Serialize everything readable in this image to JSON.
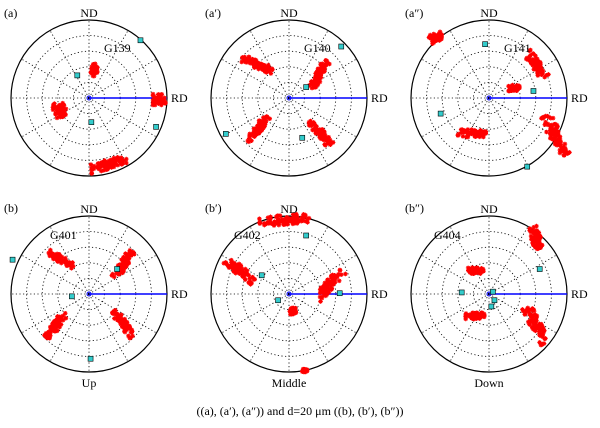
{
  "caption": "((a), (a′), (a″)) and d=20 μm ((b), (b′), (b″))",
  "colors": {
    "points": "#ff0000",
    "markers": "#33cccc",
    "rd_line": "#0000ff",
    "grid": "#000000"
  },
  "axis_labels": {
    "top": "ND",
    "right": "RD"
  },
  "chart_data": [
    {
      "type": "scatter",
      "subtype": "pole-figure",
      "panel": "(a)",
      "grain": "G139",
      "bottom_label": "",
      "projection_range": [
        -1,
        1
      ],
      "grid": true,
      "clusters": [
        {
          "x": 0.07,
          "y": 0.36,
          "spread": [
            0.04,
            0.08
          ],
          "angle": -10
        },
        {
          "x": -0.38,
          "y": -0.15,
          "spread": [
            0.08,
            0.1
          ],
          "angle": 30
        },
        {
          "x": 0.9,
          "y": -0.02,
          "spread": [
            0.08,
            0.07
          ],
          "angle": 0
        },
        {
          "x": 0.25,
          "y": -0.85,
          "spread": [
            0.24,
            0.06
          ],
          "angle": 15
        }
      ],
      "markers": [
        [
          0.66,
          0.74
        ],
        [
          -0.15,
          0.29
        ],
        [
          0.03,
          -0.31
        ],
        [
          0.86,
          -0.37
        ]
      ]
    },
    {
      "type": "scatter",
      "subtype": "pole-figure",
      "panel": "(a′)",
      "grain": "G140",
      "bottom_label": "",
      "projection_range": [
        -1,
        1
      ],
      "grid": true,
      "clusters": [
        {
          "x": -0.41,
          "y": 0.43,
          "spread": [
            0.21,
            0.05
          ],
          "angle": -22
        },
        {
          "x": 0.39,
          "y": 0.3,
          "spread": [
            0.2,
            0.05
          ],
          "angle": 62
        },
        {
          "x": -0.4,
          "y": -0.4,
          "spread": [
            0.2,
            0.05
          ],
          "angle": 55
        },
        {
          "x": 0.4,
          "y": -0.45,
          "spread": [
            0.2,
            0.05
          ],
          "angle": -50
        }
      ],
      "markers": [
        [
          0.22,
          0.14
        ],
        [
          0.67,
          0.66
        ],
        [
          -0.81,
          -0.46
        ],
        [
          0.17,
          -0.51
        ]
      ]
    },
    {
      "type": "scatter",
      "subtype": "pole-figure",
      "panel": "(a″)",
      "grain": "G141",
      "bottom_label": "",
      "projection_range": [
        -1,
        1
      ],
      "grid": true,
      "clusters": [
        {
          "x": -0.68,
          "y": 0.78,
          "spread": [
            0.08,
            0.06
          ],
          "angle": 30
        },
        {
          "x": 0.32,
          "y": 0.13,
          "spread": [
            0.07,
            0.04
          ],
          "angle": 0
        },
        {
          "x": 0.6,
          "y": 0.43,
          "spread": [
            0.2,
            0.06
          ],
          "angle": -55
        },
        {
          "x": 0.85,
          "y": -0.48,
          "spread": [
            0.28,
            0.08
          ],
          "angle": -62
        },
        {
          "x": -0.22,
          "y": -0.45,
          "spread": [
            0.18,
            0.05
          ],
          "angle": 0
        }
      ],
      "markers": [
        [
          -0.62,
          -0.2
        ],
        [
          0.57,
          0.09
        ],
        [
          0.49,
          -0.88
        ],
        [
          -0.05,
          0.69
        ]
      ]
    },
    {
      "type": "scatter",
      "subtype": "pole-figure",
      "panel": "(b)",
      "grain": "G401",
      "bottom_label": "Up",
      "projection_range": [
        -1,
        1
      ],
      "grid": true,
      "clusters": [
        {
          "x": -0.36,
          "y": 0.44,
          "spread": [
            0.18,
            0.05
          ],
          "angle": -30
        },
        {
          "x": 0.44,
          "y": 0.38,
          "spread": [
            0.2,
            0.05
          ],
          "angle": 58
        },
        {
          "x": -0.42,
          "y": -0.4,
          "spread": [
            0.2,
            0.05
          ],
          "angle": 55
        },
        {
          "x": 0.44,
          "y": -0.38,
          "spread": [
            0.2,
            0.05
          ],
          "angle": -52
        }
      ],
      "markers": [
        [
          -0.98,
          0.44
        ],
        [
          0.36,
          0.32
        ],
        [
          -0.22,
          -0.03
        ],
        [
          0.02,
          -0.83
        ]
      ]
    },
    {
      "type": "scatter",
      "subtype": "pole-figure",
      "panel": "(b′)",
      "grain": "G402",
      "bottom_label": "Middle",
      "projection_range": [
        -1,
        1
      ],
      "grid": true,
      "clusters": [
        {
          "x": -0.06,
          "y": 0.95,
          "spread": [
            0.32,
            0.06
          ],
          "angle": 5
        },
        {
          "x": -0.63,
          "y": 0.3,
          "spread": [
            0.22,
            0.06
          ],
          "angle": -40
        },
        {
          "x": 0.52,
          "y": 0.12,
          "spread": [
            0.24,
            0.06
          ],
          "angle": 48
        },
        {
          "x": 0.05,
          "y": -0.22,
          "spread": [
            0.04,
            0.04
          ],
          "angle": 0
        },
        {
          "x": 0.2,
          "y": -0.98,
          "spread": [
            0.03,
            0.02
          ],
          "angle": 0
        }
      ],
      "markers": [
        [
          0.22,
          0.75
        ],
        [
          -0.35,
          0.24
        ],
        [
          0.65,
          0.01
        ],
        [
          -0.14,
          -0.08
        ]
      ]
    },
    {
      "type": "scatter",
      "subtype": "pole-figure",
      "panel": "(b″)",
      "grain": "G404",
      "bottom_label": "Down",
      "projection_range": [
        -1,
        1
      ],
      "grid": true,
      "clusters": [
        {
          "x": 0.6,
          "y": 0.72,
          "spread": [
            0.14,
            0.06
          ],
          "angle": -70
        },
        {
          "x": -0.17,
          "y": 0.3,
          "spread": [
            0.1,
            0.04
          ],
          "angle": 0
        },
        {
          "x": 0.6,
          "y": -0.4,
          "spread": [
            0.26,
            0.07
          ],
          "angle": -65
        },
        {
          "x": -0.18,
          "y": -0.28,
          "spread": [
            0.12,
            0.04
          ],
          "angle": 0
        }
      ],
      "markers": [
        [
          0.65,
          0.32
        ],
        [
          -0.35,
          0.02
        ],
        [
          0.05,
          0.03
        ],
        [
          0.07,
          -0.08
        ],
        [
          0.03,
          -0.16
        ]
      ]
    }
  ]
}
